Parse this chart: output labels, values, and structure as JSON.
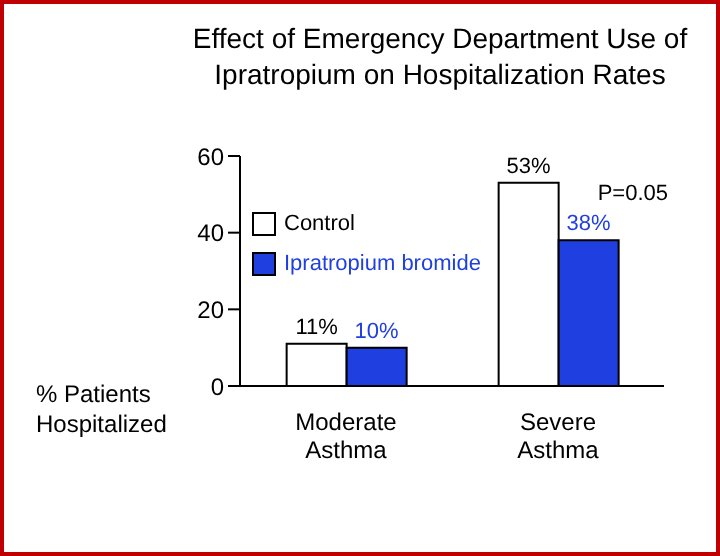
{
  "chart_data": {
    "type": "bar",
    "title": "Effect of Emergency Department Use of Ipratropium on Hospitalization Rates",
    "ylabel": "% Patients Hospitalized",
    "categories": [
      "Moderate Asthma",
      "Severe Asthma"
    ],
    "series": [
      {
        "name": "Control",
        "color": "#ffffff",
        "values": [
          11,
          53
        ],
        "value_labels": [
          "11%",
          "53%"
        ]
      },
      {
        "name": "Ipratropium bromide",
        "color": "#1f3fe0",
        "values": [
          10,
          38
        ],
        "value_labels": [
          "10%",
          "38%"
        ]
      }
    ],
    "ylim": [
      0,
      60
    ],
    "yticks": [
      0,
      20,
      40,
      60
    ],
    "legend": "top left",
    "annotations": [
      "P=0.05"
    ]
  }
}
